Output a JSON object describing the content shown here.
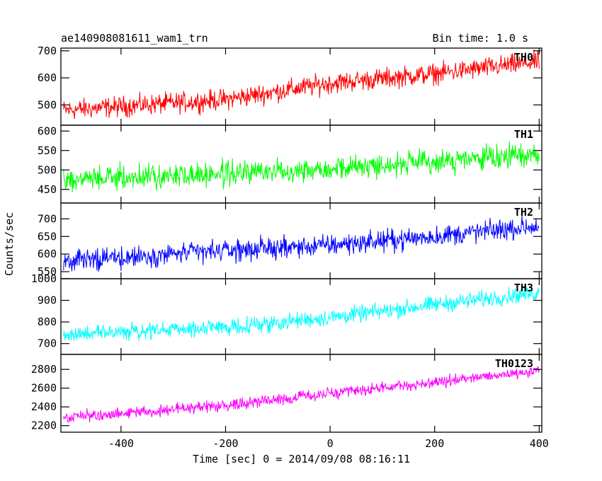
{
  "chart_data": {
    "type": "line",
    "title_left": "ae140908081611_wam1_trn",
    "title_right": "Bin time: 1.0 s",
    "xlabel": "Time [sec] 0 = 2014/09/08 08:16:11",
    "ylabel": "Counts/sec",
    "xlim": [
      -515,
      405
    ],
    "xticks": [
      -400,
      -200,
      0,
      200,
      400
    ],
    "grid": false,
    "panels": [
      {
        "name": "TH0",
        "color": "#ff0000",
        "ylim": [
          425,
          710
        ],
        "yticks": [
          500,
          600,
          700
        ],
        "trend": {
          "x": [
            -510,
            -200,
            0,
            200,
            400
          ],
          "y": [
            480,
            520,
            580,
            615,
            660
          ]
        },
        "noise": 35
      },
      {
        "name": "TH1",
        "color": "#00ff00",
        "ylim": [
          415,
          615
        ],
        "yticks": [
          450,
          500,
          550,
          600
        ],
        "trend": {
          "x": [
            -510,
            -200,
            0,
            200,
            400
          ],
          "y": [
            475,
            490,
            505,
            520,
            540
          ]
        },
        "noise": 28
      },
      {
        "name": "TH2",
        "color": "#0000ff",
        "ylim": [
          530,
          745
        ],
        "yticks": [
          550,
          600,
          650,
          700
        ],
        "trend": {
          "x": [
            -510,
            -200,
            0,
            200,
            400
          ],
          "y": [
            580,
            610,
            625,
            650,
            680
          ]
        },
        "noise": 28
      },
      {
        "name": "TH3",
        "color": "#00ffff",
        "ylim": [
          650,
          1000
        ],
        "yticks": [
          700,
          800,
          900,
          1000
        ],
        "trend": {
          "x": [
            -510,
            -200,
            0,
            200,
            400
          ],
          "y": [
            740,
            775,
            820,
            880,
            935
          ]
        },
        "noise": 35
      },
      {
        "name": "TH0123",
        "color": "#ff00ff",
        "ylim": [
          2130,
          2960
        ],
        "yticks": [
          2200,
          2400,
          2600,
          2800
        ],
        "trend": {
          "x": [
            -510,
            -200,
            0,
            200,
            400
          ],
          "y": [
            2280,
            2420,
            2540,
            2660,
            2790
          ]
        },
        "noise": 55
      }
    ]
  }
}
